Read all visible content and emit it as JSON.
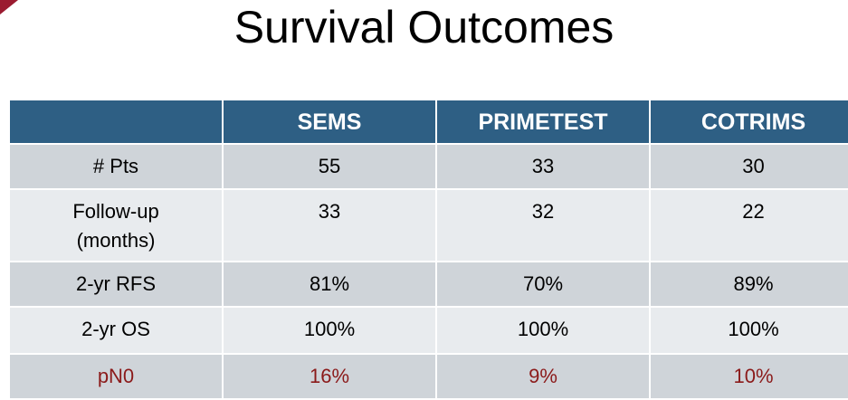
{
  "title": "Survival Outcomes",
  "colors": {
    "header_bg": "#2e5f84",
    "row_dark": "#cfd4d9",
    "row_light": "#e8ebee",
    "highlight_text": "#8b1a1a",
    "corner_accent": "#9b1b30"
  },
  "table": {
    "headers": [
      "",
      "SEMS",
      "PRIMETEST",
      "COTRIMS"
    ],
    "rows": [
      {
        "label": "# Pts",
        "values": [
          "55",
          "33",
          "30"
        ]
      },
      {
        "label_line1": "Follow-up",
        "label_line2": "(months)",
        "values": [
          "33",
          "32",
          "22"
        ]
      },
      {
        "label": "2-yr RFS",
        "values": [
          "81%",
          "70%",
          "89%"
        ]
      },
      {
        "label": "2-yr OS",
        "values": [
          "100%",
          "100%",
          "100%"
        ]
      },
      {
        "label": "pN0",
        "values": [
          "16%",
          "9%",
          "10%"
        ]
      }
    ]
  }
}
